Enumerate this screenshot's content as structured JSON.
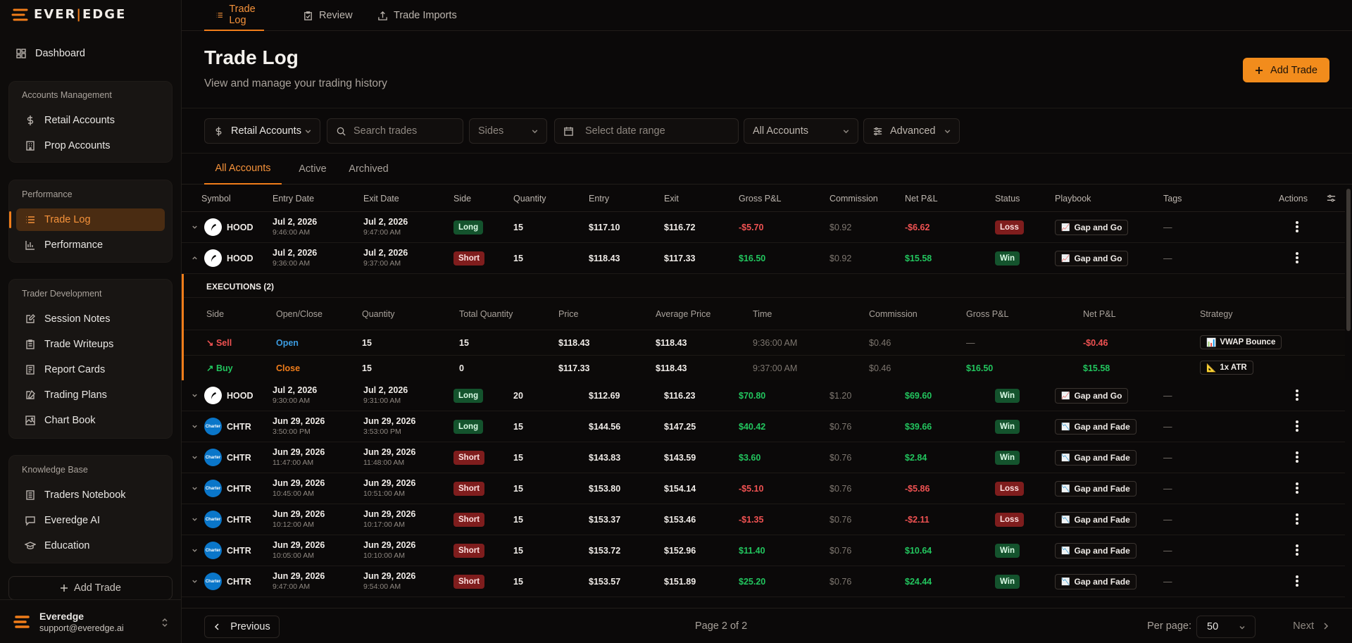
{
  "brand": {
    "logo_text_a": "EVER",
    "logo_text_b": "EDGE"
  },
  "sidebar": {
    "dashboard": "Dashboard",
    "groups": [
      {
        "title": "Accounts Management",
        "items": [
          "Retail Accounts",
          "Prop Accounts"
        ]
      },
      {
        "title": "Performance",
        "items": [
          "Trade Log",
          "Performance"
        ]
      },
      {
        "title": "Trader Development",
        "items": [
          "Session Notes",
          "Trade Writeups",
          "Report Cards",
          "Trading Plans",
          "Chart Book"
        ]
      },
      {
        "title": "Knowledge Base",
        "items": [
          "Traders Notebook",
          "Everedge AI",
          "Education"
        ]
      }
    ],
    "add_trade": "Add Trade",
    "user": {
      "name": "Everedge",
      "email": "support@everedge.ai"
    }
  },
  "topnav": {
    "tabs": [
      "Trade Log",
      "Review",
      "Trade Imports"
    ]
  },
  "header": {
    "title": "Trade Log",
    "subtitle": "View and manage your trading history",
    "add_button": "Add Trade"
  },
  "filters": {
    "account_type": "Retail Accounts",
    "search_placeholder": "Search trades",
    "sides": "Sides",
    "date_placeholder": "Select date range",
    "accounts": "All Accounts",
    "advanced": "Advanced"
  },
  "subtabs": [
    "All Accounts",
    "Active",
    "Archived"
  ],
  "table": {
    "columns": [
      "Symbol",
      "Entry Date",
      "Exit Date",
      "Side",
      "Quantity",
      "Entry",
      "Exit",
      "Gross P&L",
      "Commission",
      "Net P&L",
      "Status",
      "Playbook",
      "Tags",
      "Actions"
    ],
    "rows": [
      {
        "symbol": "HOOD",
        "entry_date": "Jul 2, 2026",
        "entry_time": "9:46:00 AM",
        "exit_date": "Jul 2, 2026",
        "exit_time": "9:47:00 AM",
        "side": "Long",
        "qty": "15",
        "entry": "$117.10",
        "exit": "$116.72",
        "gross": "-$5.70",
        "commission": "$0.92",
        "net": "-$6.62",
        "status": "Loss",
        "playbook": "Gap and Go",
        "tags": "—"
      },
      {
        "symbol": "HOOD",
        "entry_date": "Jul 2, 2026",
        "entry_time": "9:36:00 AM",
        "exit_date": "Jul 2, 2026",
        "exit_time": "9:37:00 AM",
        "side": "Short",
        "qty": "15",
        "entry": "$118.43",
        "exit": "$117.33",
        "gross": "$16.50",
        "commission": "$0.92",
        "net": "$15.58",
        "status": "Win",
        "playbook": "Gap and Go",
        "tags": "—"
      },
      {
        "symbol": "HOOD",
        "entry_date": "Jul 2, 2026",
        "entry_time": "9:30:00 AM",
        "exit_date": "Jul 2, 2026",
        "exit_time": "9:31:00 AM",
        "side": "Long",
        "qty": "20",
        "entry": "$112.69",
        "exit": "$116.23",
        "gross": "$70.80",
        "commission": "$1.20",
        "net": "$69.60",
        "status": "Win",
        "playbook": "Gap and Go",
        "tags": "—"
      },
      {
        "symbol": "CHTR",
        "entry_date": "Jun 29, 2026",
        "entry_time": "3:50:00 PM",
        "exit_date": "Jun 29, 2026",
        "exit_time": "3:53:00 PM",
        "side": "Long",
        "qty": "15",
        "entry": "$144.56",
        "exit": "$147.25",
        "gross": "$40.42",
        "commission": "$0.76",
        "net": "$39.66",
        "status": "Win",
        "playbook": "Gap and Fade",
        "tags": "—"
      },
      {
        "symbol": "CHTR",
        "entry_date": "Jun 29, 2026",
        "entry_time": "11:47:00 AM",
        "exit_date": "Jun 29, 2026",
        "exit_time": "11:48:00 AM",
        "side": "Short",
        "qty": "15",
        "entry": "$143.83",
        "exit": "$143.59",
        "gross": "$3.60",
        "commission": "$0.76",
        "net": "$2.84",
        "status": "Win",
        "playbook": "Gap and Fade",
        "tags": "—"
      },
      {
        "symbol": "CHTR",
        "entry_date": "Jun 29, 2026",
        "entry_time": "10:45:00 AM",
        "exit_date": "Jun 29, 2026",
        "exit_time": "10:51:00 AM",
        "side": "Short",
        "qty": "15",
        "entry": "$153.80",
        "exit": "$154.14",
        "gross": "-$5.10",
        "commission": "$0.76",
        "net": "-$5.86",
        "status": "Loss",
        "playbook": "Gap and Fade",
        "tags": "—"
      },
      {
        "symbol": "CHTR",
        "entry_date": "Jun 29, 2026",
        "entry_time": "10:12:00 AM",
        "exit_date": "Jun 29, 2026",
        "exit_time": "10:17:00 AM",
        "side": "Short",
        "qty": "15",
        "entry": "$153.37",
        "exit": "$153.46",
        "gross": "-$1.35",
        "commission": "$0.76",
        "net": "-$2.11",
        "status": "Loss",
        "playbook": "Gap and Fade",
        "tags": "—"
      },
      {
        "symbol": "CHTR",
        "entry_date": "Jun 29, 2026",
        "entry_time": "10:05:00 AM",
        "exit_date": "Jun 29, 2026",
        "exit_time": "10:10:00 AM",
        "side": "Short",
        "qty": "15",
        "entry": "$153.72",
        "exit": "$152.96",
        "gross": "$11.40",
        "commission": "$0.76",
        "net": "$10.64",
        "status": "Win",
        "playbook": "Gap and Fade",
        "tags": "—"
      },
      {
        "symbol": "CHTR",
        "entry_date": "Jun 29, 2026",
        "entry_time": "9:47:00 AM",
        "exit_date": "Jun 29, 2026",
        "exit_time": "9:54:00 AM",
        "side": "Short",
        "qty": "15",
        "entry": "$153.57",
        "exit": "$151.89",
        "gross": "$25.20",
        "commission": "$0.76",
        "net": "$24.44",
        "status": "Win",
        "playbook": "Gap and Fade",
        "tags": "—"
      }
    ]
  },
  "executions": {
    "title": "EXECUTIONS (2)",
    "columns": [
      "Side",
      "Open/Close",
      "Quantity",
      "Total Quantity",
      "Price",
      "Average Price",
      "Time",
      "Commission",
      "Gross P&L",
      "Net P&L",
      "Strategy"
    ],
    "rows": [
      {
        "side": "Sell",
        "oc": "Open",
        "qty": "15",
        "total": "15",
        "price": "$118.43",
        "avg": "$118.43",
        "time": "9:36:00 AM",
        "commission": "$0.46",
        "gross": "—",
        "net": "-$0.46",
        "strategy": "VWAP Bounce"
      },
      {
        "side": "Buy",
        "oc": "Close",
        "qty": "15",
        "total": "0",
        "price": "$117.33",
        "avg": "$118.43",
        "time": "9:37:00 AM",
        "commission": "$0.46",
        "gross": "$16.50",
        "net": "$15.58",
        "strategy": "1x ATR"
      }
    ]
  },
  "footer": {
    "previous": "Previous",
    "page_info": "Page 2 of 2",
    "per_page_label": "Per page:",
    "per_page": "50",
    "next": "Next"
  },
  "colors": {
    "accent": "#f07d1a",
    "win": "#22c55e",
    "loss": "#f05252"
  }
}
